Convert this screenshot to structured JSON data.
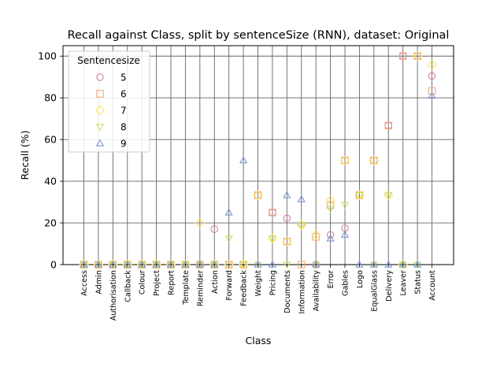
{
  "chart_data": {
    "type": "scatter",
    "title": "Recall against Class, split by sentenceSize (RNN), dataset: Original",
    "xlabel": "Class",
    "ylabel": "Recall (%)",
    "ylim": [
      0,
      105
    ],
    "yticks": [
      0,
      20,
      40,
      60,
      80,
      100
    ],
    "grid": true,
    "legend_position": "upper-left",
    "legend_title": "Sentencesize",
    "categories": [
      "Access",
      "Admin",
      "Authorisation",
      "Callback",
      "Colour",
      "Project",
      "Report",
      "Template",
      "Reminder",
      "Action",
      "Forward",
      "Feedback",
      "Weight",
      "Pricing",
      "Documents",
      "Information",
      "Availability",
      "Error",
      "Gables",
      "Logo",
      "EqualGlass",
      "Delivery",
      "Leaver",
      "Status",
      "Account"
    ],
    "series": [
      {
        "name": "5",
        "marker": "circle",
        "color": "#d6739b",
        "values": [
          0,
          0,
          0,
          0,
          0,
          0,
          0,
          0,
          0,
          17,
          0,
          0,
          33.3,
          25,
          22.2,
          19,
          0,
          14.3,
          17.5,
          33.3,
          50,
          66.7,
          100,
          100,
          90.5
        ]
      },
      {
        "name": "6",
        "marker": "square",
        "color": "#f5a46e",
        "values": [
          0,
          0,
          0,
          0,
          0,
          0,
          0,
          0,
          0,
          0,
          0,
          0,
          33.3,
          25,
          11.1,
          0,
          13.3,
          28.6,
          50,
          33.3,
          50,
          66.7,
          100,
          100,
          83.3
        ]
      },
      {
        "name": "7",
        "marker": "diamond",
        "color": "#fde04f",
        "values": [
          0,
          0,
          0,
          0,
          0,
          0,
          0,
          0,
          20,
          0,
          0,
          0,
          33.3,
          12.5,
          11.1,
          19,
          14.3,
          30.8,
          50,
          33.3,
          50,
          33.3,
          0,
          100,
          95.8
        ]
      },
      {
        "name": "8",
        "marker": "triangle-down",
        "color": "#c6df5d",
        "values": [
          0,
          0,
          0,
          0,
          0,
          0,
          0,
          0,
          0,
          0,
          12.5,
          0,
          0,
          12.5,
          0,
          19,
          0,
          26.7,
          28.6,
          33.3,
          0,
          33.3,
          0,
          0,
          null
        ]
      },
      {
        "name": "9",
        "marker": "triangle-up",
        "color": "#6f8fcf",
        "values": [
          0,
          0,
          0,
          0,
          0,
          0,
          0,
          0,
          0,
          0,
          25,
          50,
          0,
          0,
          33.3,
          31.3,
          0,
          12.5,
          14.3,
          0,
          0,
          0,
          0,
          0,
          81
        ]
      }
    ]
  }
}
